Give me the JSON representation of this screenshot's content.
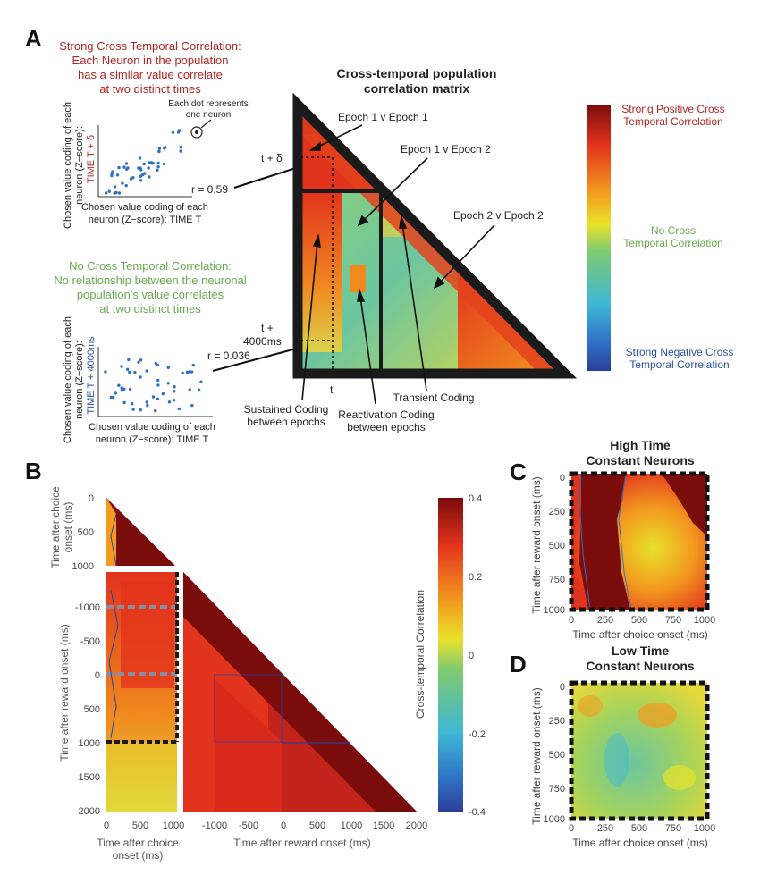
{
  "panel_labels": {
    "a": "A",
    "b": "B",
    "c": "C",
    "d": "D"
  },
  "colors": {
    "strong_pos": "#7a0c0c",
    "red": "#e2331c",
    "orange": "#f39a1f",
    "yellow": "#e9e22b",
    "green": "#7ecb70",
    "cyan": "#3fb7d6",
    "blue": "#2b3f9a",
    "frame": "#1a1a1a"
  },
  "panel_a": {
    "strong_title": [
      "Strong Cross Temporal Correlation:",
      "Each Neuron in the population",
      "has a similar value correlate",
      "at two distinct times"
    ],
    "no_title": [
      "No Cross Temporal Correlation:",
      "No relationship between the neuronal",
      "population's value correlates",
      "at two distinct times"
    ],
    "dot_note": [
      "Each dot represents",
      "one neuron"
    ],
    "scatter_ylabel": [
      "Chosen value coding of each",
      "neuron (Z−score):"
    ],
    "scatter1_time": "TIME T + δ",
    "scatter2_time": "TIME T + 4000ms",
    "scatter_xlabel": [
      "Chosen value coding of each",
      "neuron (Z−score): TIME T"
    ],
    "r1": "r = 0.59",
    "r2": "r = 0.036",
    "matrix_title": [
      "Cross-temporal population",
      "correlation matrix"
    ],
    "t_delta": "t + δ",
    "t_4000": [
      "t +",
      "4000ms"
    ],
    "t": "t",
    "callouts": {
      "e11": "Epoch 1 v Epoch 1",
      "e12": "Epoch 1 v Epoch 2",
      "e22": "Epoch 2 v Epoch 2",
      "sustained": [
        "Sustained Coding",
        "between epochs"
      ],
      "reactivation": [
        "Reactivation Coding",
        "between epochs"
      ],
      "transient": "Transient Coding"
    },
    "colorbar": {
      "top": [
        "Strong Positive Cross",
        "Temporal Correlation"
      ],
      "mid": [
        "No Cross",
        "Temporal Correlation"
      ],
      "bottom": [
        "Strong Negative Cross",
        "Temporal Correlation"
      ]
    }
  },
  "panel_b": {
    "ylabel_choice": [
      "Time after choice",
      "onset (ms)"
    ],
    "ylabel_reward": "Time after reward onset (ms)",
    "xlabel_choice": [
      "Time after choice",
      "onset (ms)"
    ],
    "xlabel_reward": "Time after reward onset (ms)",
    "choice_ticks": [
      "0",
      "500",
      "1000"
    ],
    "reward_yticks": [
      "-1000",
      "-500",
      "0",
      "500",
      "1000",
      "1500",
      "2000"
    ],
    "choice_xticks": [
      "0",
      "500",
      "1000"
    ],
    "reward_xticks": [
      "-1000",
      "-500",
      "0",
      "500",
      "1000",
      "1500",
      "2000"
    ],
    "colorbar_label": "Cross-temporal Correlation",
    "colorbar_ticks": [
      "0.4",
      "0.2",
      "0",
      "-0.2",
      "-0.4"
    ]
  },
  "panel_c": {
    "title": [
      "High Time",
      "Constant Neurons"
    ],
    "ylabel": "Time after reward onset (ms)",
    "xlabel": "Time after choice onset (ms)",
    "yticks": [
      "0",
      "250",
      "500",
      "750",
      "1000"
    ],
    "xticks": [
      "0",
      "250",
      "500",
      "750",
      "1000"
    ]
  },
  "panel_d": {
    "title": [
      "Low Time",
      "Constant Neurons"
    ],
    "ylabel": "Time after reward onset (ms)",
    "xlabel": "Time after choice onset (ms)",
    "yticks": [
      "0",
      "250",
      "500",
      "750",
      "1000"
    ],
    "xticks": [
      "0",
      "250",
      "500",
      "750",
      "1000"
    ]
  }
}
